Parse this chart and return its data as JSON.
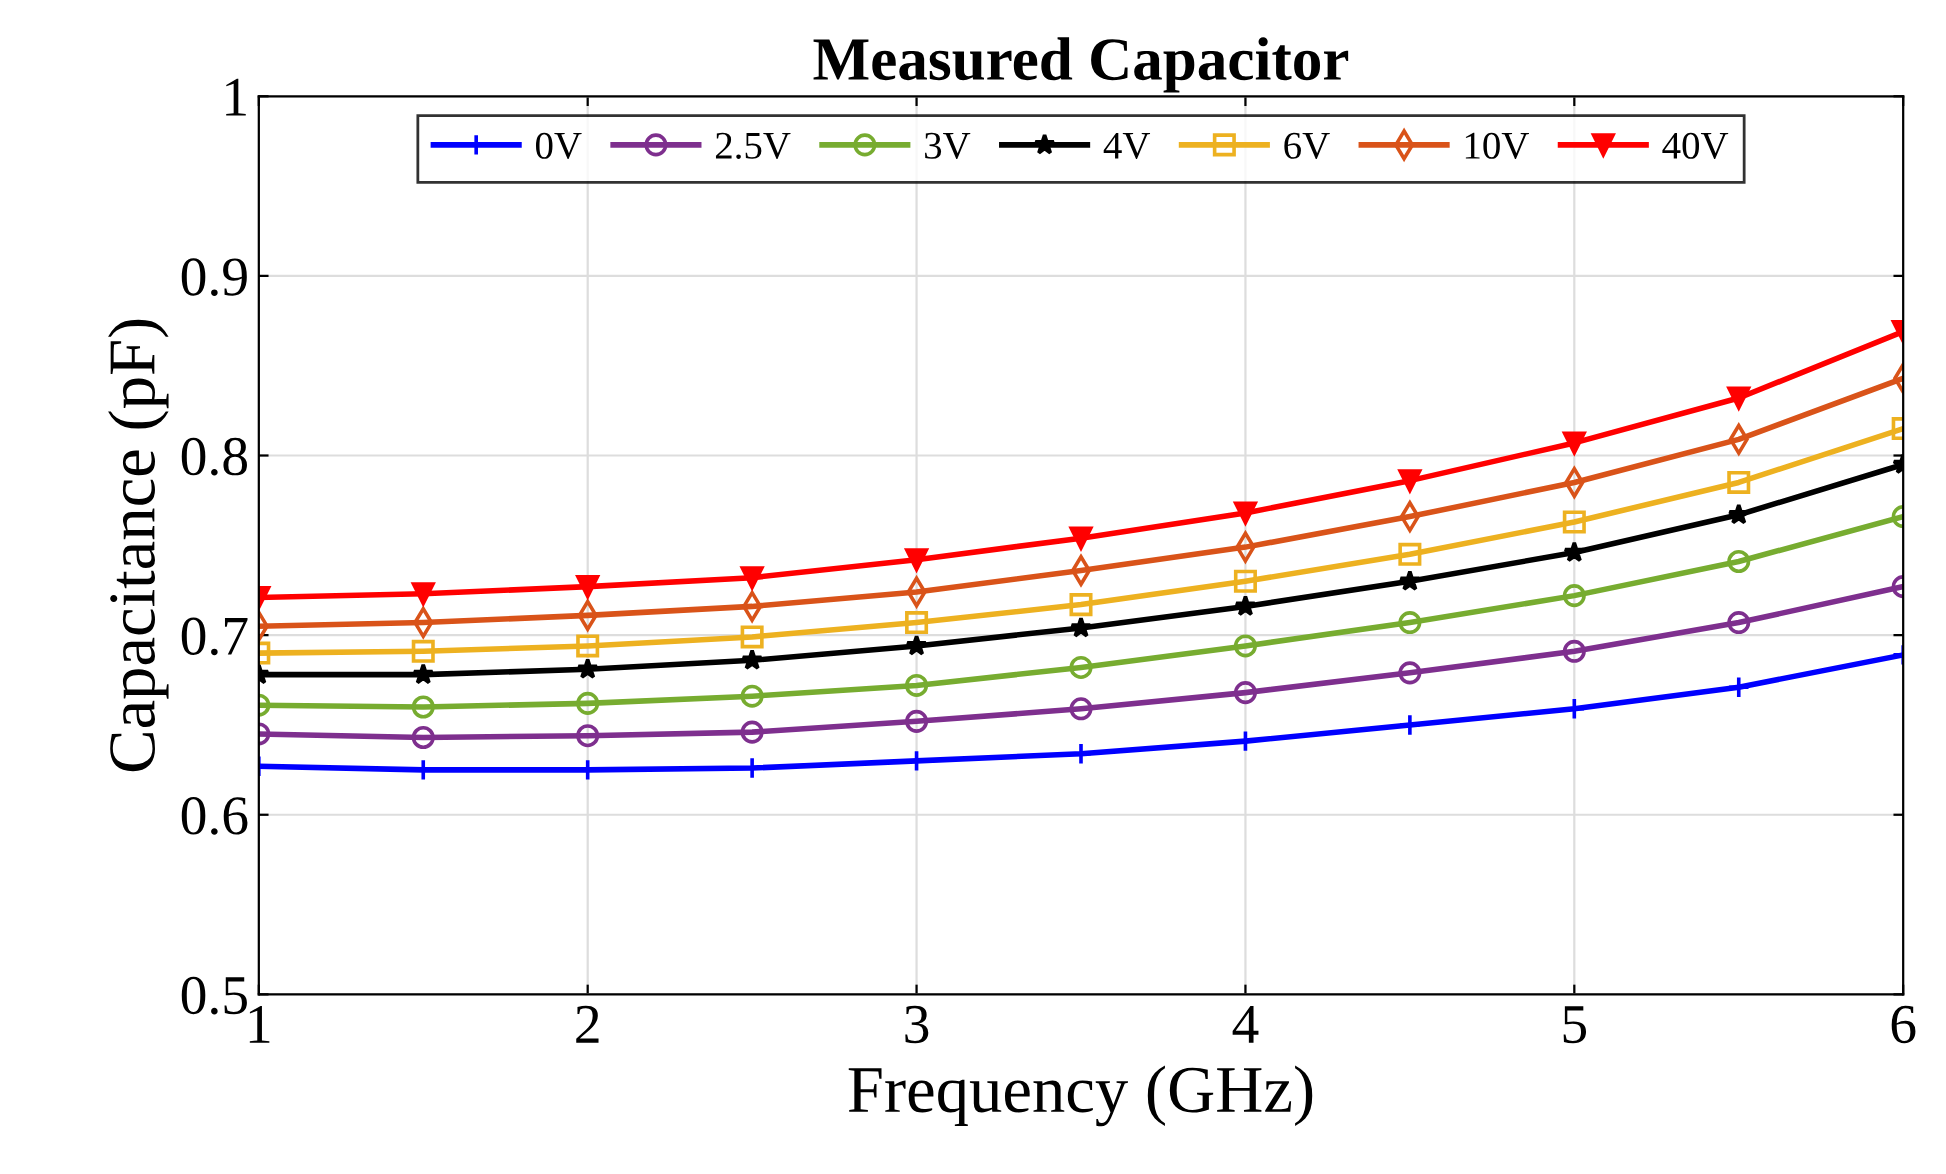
{
  "chart_data": {
    "type": "line",
    "title": "Measured Capacitor",
    "xlabel": "Frequency (GHz)",
    "ylabel": "Capacitance (pF)",
    "x": [
      1,
      1.5,
      2,
      2.5,
      3,
      3.5,
      4,
      4.5,
      5,
      5.5,
      6
    ],
    "series": [
      {
        "name": "0V",
        "color": "#0000ff",
        "marker": "cross",
        "values": [
          0.627,
          0.625,
          0.625,
          0.626,
          0.63,
          0.634,
          0.641,
          0.65,
          0.659,
          0.671,
          0.689
        ]
      },
      {
        "name": "2.5V",
        "color": "#7e2f8e",
        "marker": "circle",
        "values": [
          0.645,
          0.643,
          0.644,
          0.646,
          0.652,
          0.659,
          0.668,
          0.679,
          0.691,
          0.707,
          0.727
        ]
      },
      {
        "name": "3V",
        "color": "#77ac30",
        "marker": "circle",
        "values": [
          0.661,
          0.66,
          0.662,
          0.666,
          0.672,
          0.682,
          0.694,
          0.707,
          0.722,
          0.741,
          0.766
        ]
      },
      {
        "name": "4V",
        "color": "#000000",
        "marker": "star",
        "values": [
          0.678,
          0.678,
          0.681,
          0.686,
          0.694,
          0.704,
          0.716,
          0.73,
          0.746,
          0.767,
          0.795
        ]
      },
      {
        "name": "6V",
        "color": "#edb120",
        "marker": "square",
        "values": [
          0.69,
          0.691,
          0.694,
          0.699,
          0.707,
          0.717,
          0.73,
          0.745,
          0.763,
          0.785,
          0.815
        ]
      },
      {
        "name": "10V",
        "color": "#d95319",
        "marker": "diamond",
        "values": [
          0.705,
          0.707,
          0.711,
          0.716,
          0.724,
          0.736,
          0.749,
          0.766,
          0.785,
          0.809,
          0.843
        ]
      },
      {
        "name": "40V",
        "color": "#ff0000",
        "marker": "triangle",
        "values": [
          0.721,
          0.723,
          0.727,
          0.732,
          0.742,
          0.754,
          0.768,
          0.786,
          0.807,
          0.832,
          0.869
        ]
      }
    ],
    "xlim": [
      1,
      6
    ],
    "ylim": [
      0.5,
      1
    ],
    "xticks": [
      1,
      2,
      3,
      4,
      5,
      6
    ],
    "yticks": [
      0.5,
      0.6,
      0.7,
      0.8,
      0.9,
      {
        "value": 1,
        "label": "1"
      }
    ],
    "grid": true,
    "legend": "top",
    "line_style": "solid"
  }
}
